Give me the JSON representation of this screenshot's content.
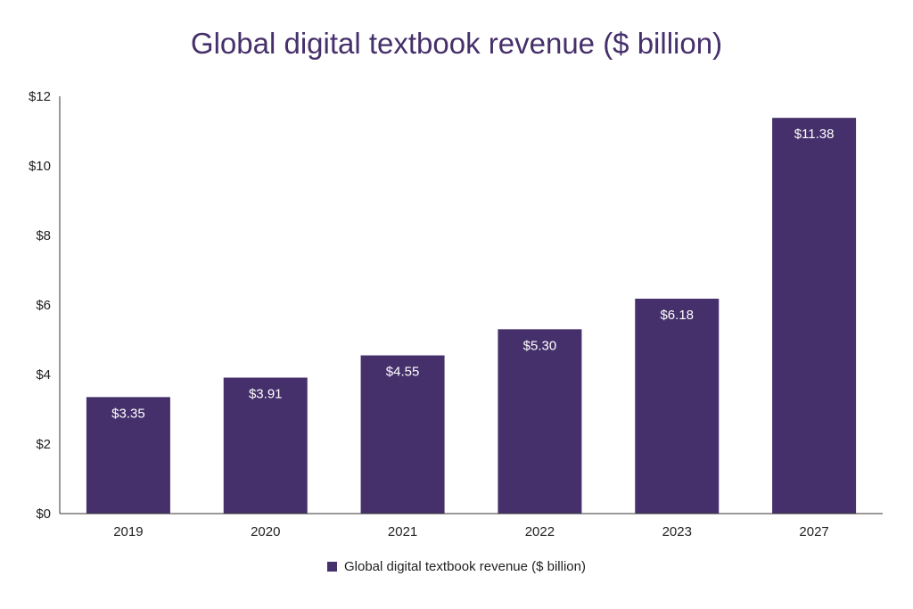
{
  "colors": {
    "bar": "#46306b",
    "title": "#46306b",
    "axis": "#333333",
    "text": "#222222"
  },
  "legend": {
    "label": "Global digital textbook revenue ($ billion)"
  },
  "chart_data": {
    "type": "bar",
    "title": "Global digital textbook revenue ($ billion)",
    "xlabel": "",
    "ylabel": "",
    "categories": [
      "2019",
      "2020",
      "2021",
      "2022",
      "2023",
      "2027"
    ],
    "series": [
      {
        "name": "Global digital textbook revenue ($ billion)",
        "values": [
          3.35,
          3.91,
          4.55,
          5.3,
          6.18,
          11.38
        ],
        "data_labels": [
          "$3.35",
          "$3.91",
          "$4.55",
          "$5.30",
          "$6.18",
          "$11.38"
        ]
      }
    ],
    "ylim": [
      0,
      12
    ],
    "yticks": [
      0,
      2,
      4,
      6,
      8,
      10,
      12
    ],
    "ytick_labels": [
      "$0",
      "$2",
      "$4",
      "$6",
      "$8",
      "$10",
      "$12"
    ],
    "grid": false,
    "legend_position": "bottom-center"
  }
}
